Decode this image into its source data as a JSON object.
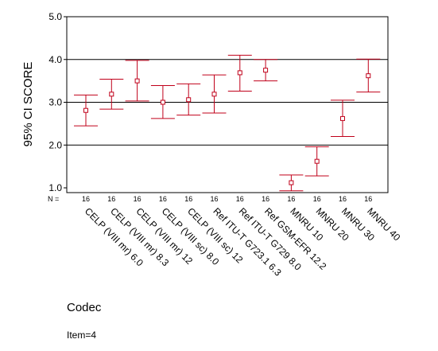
{
  "chart_data": {
    "type": "errorbar",
    "ylabel": "95% CI SCORE",
    "xlabel": "Codec",
    "ylim": [
      0.9,
      5.0
    ],
    "yticks": [
      "1.0",
      "2.0",
      "3.0",
      "4.0",
      "5.0"
    ],
    "ytick_values": [
      1.0,
      2.0,
      3.0,
      4.0,
      5.0
    ],
    "grid_y": [
      2.0,
      3.0,
      4.0
    ],
    "n_label": "N =",
    "categories": [
      "CELP (VIII mr) 6.0",
      "CELP (VIII mr) 8.3",
      "CELP (VIII mr) 12",
      "CELP (VIII sc) 8.0",
      "CELP (VIII sc) 12",
      "Ref ITU-T G723.1 6.3",
      "Ref ITU-T G729 8.0",
      "Ref GSM-EFR 12.2",
      "MNRU 10",
      "MNRU 20",
      "MNRU 30",
      "MNRU 40"
    ],
    "n": [
      "16",
      "16",
      "16",
      "16",
      "16",
      "16",
      "16",
      "16",
      "16",
      "16",
      "16",
      "16"
    ],
    "mean": [
      2.81,
      3.19,
      3.5,
      3.0,
      3.06,
      3.19,
      3.69,
      3.75,
      1.12,
      1.62,
      2.62,
      3.62
    ],
    "lower": [
      2.45,
      2.84,
      3.03,
      2.62,
      2.7,
      2.75,
      3.26,
      3.5,
      0.93,
      1.28,
      2.2,
      3.24
    ],
    "upper": [
      3.17,
      3.54,
      3.98,
      3.39,
      3.43,
      3.64,
      4.1,
      4.0,
      1.3,
      1.96,
      3.05,
      4.01
    ],
    "color": "#c0001a"
  },
  "note": "Item=4"
}
